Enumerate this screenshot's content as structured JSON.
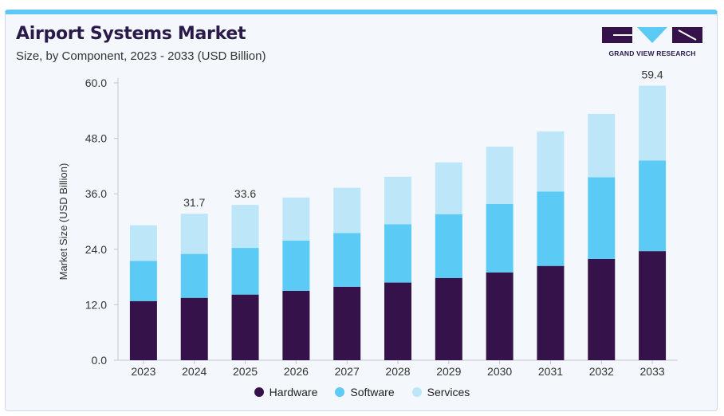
{
  "header": {
    "title": "Airport Systems Market",
    "subtitle": "Size, by Component, 2023 - 2033 (USD Billion)",
    "logo_text": "GRAND VIEW RESEARCH"
  },
  "colors": {
    "hardware": "#36124a",
    "software": "#5bcaf5",
    "services": "#bde6f8",
    "logo_dark": "#36124a",
    "logo_accent": "#5bcaf5"
  },
  "chart_data": {
    "type": "bar",
    "stacked": true,
    "title": "Airport Systems Market",
    "subtitle": "Size, by Component, 2023 - 2033 (USD Billion)",
    "xlabel": "",
    "ylabel": "Market Size (USD Billion)",
    "ylim": [
      0,
      60
    ],
    "yticks": [
      "0.0",
      "12.0",
      "24.0",
      "36.0",
      "48.0",
      "60.0"
    ],
    "categories": [
      "2023",
      "2024",
      "2025",
      "2026",
      "2027",
      "2028",
      "2029",
      "2030",
      "2031",
      "2032",
      "2033"
    ],
    "series": [
      {
        "name": "Hardware",
        "values": [
          12.8,
          13.5,
          14.2,
          15.0,
          15.9,
          16.8,
          17.8,
          19.0,
          20.4,
          21.9,
          23.6
        ]
      },
      {
        "name": "Software",
        "values": [
          8.7,
          9.5,
          10.1,
          10.9,
          11.6,
          12.6,
          13.8,
          14.8,
          16.1,
          17.7,
          19.6
        ]
      },
      {
        "name": "Services",
        "values": [
          7.7,
          8.7,
          9.3,
          9.3,
          9.8,
          10.3,
          11.2,
          12.4,
          13.0,
          13.7,
          16.2
        ]
      }
    ],
    "data_labels": [
      {
        "category": "2024",
        "text": "31.7"
      },
      {
        "category": "2025",
        "text": "33.6"
      },
      {
        "category": "2033",
        "text": "59.4"
      }
    ],
    "grid": false,
    "legend": "bottom-center"
  }
}
